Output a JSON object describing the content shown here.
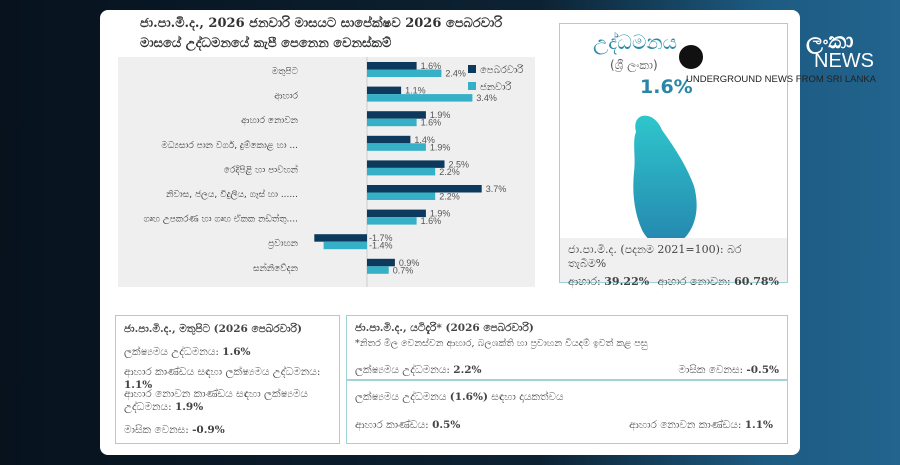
{
  "title": "ජා.පා.මි.ද., 2026 ජනවාරි මාසයට සාපේක්ෂව 2026 පෙබරවාරි මාසයේ උද්ධමනයේ කැපී පෙනෙන වෙනස්කම්",
  "colors": {
    "february": "#0d3a5c",
    "january": "#35b0c6",
    "accent": "#2a8aa8"
  },
  "chart_data": {
    "type": "bar",
    "orientation": "horizontal",
    "categories": [
      "මතුපිට",
      "ආහාර",
      "ආහාර නොවන",
      "මධ්‍යසාර පාන වර්ග, දුම්කොළ හා ...",
      "රෙදිපිළි හා පාවහන්",
      "නිවාස, ජලය, විදුලිය, ගෑස් හා ......",
      "ගෘහ උපකරණ හා ගෘහ ඒකක නඩත්තු....",
      "ප්‍රවාහන",
      "සන්නිවේදන"
    ],
    "series": [
      {
        "name": "පෙබරවාරි",
        "values": [
          1.6,
          1.1,
          1.9,
          1.4,
          2.5,
          3.7,
          1.9,
          -1.7,
          0.9
        ]
      },
      {
        "name": "ජනවාරි",
        "values": [
          2.4,
          3.4,
          1.6,
          1.9,
          2.2,
          2.2,
          1.6,
          -1.4,
          0.7
        ]
      }
    ],
    "unit": "%",
    "legend": "top-right",
    "grid": false
  },
  "panel": {
    "title": "උද්ධමනය",
    "subtitle": "(ශ්‍රී ලංකා)",
    "value": "1.6%",
    "weights_title": "ජා.පා.මි.ද. (පදනම 2021=100): බර තැබීම%",
    "food_label": "ආහාර:",
    "food_value": "39.22%",
    "nonfood_label": "ආහාර නොවන:",
    "nonfood_value": "60.78%"
  },
  "watermark": {
    "brand": "ලංකා",
    "news": "NEWS",
    "tagline": "UNDERGROUND NEWS FROM SRI LANKA"
  },
  "headline_box": {
    "title": "ජා.පා.මි.ද., මතුපිට (2026 පෙබරවාරි)",
    "rows": [
      {
        "label": "ලක්ෂ්‍යමය උද්ධමනය:",
        "value": "1.6%"
      },
      {
        "label": "ආහාර කාණ්ඩය සඳහා ලක්ෂ්‍යමය උද්ධමනය:",
        "value": "1.1%"
      },
      {
        "label": "ආහාර නොවන කාණ්ඩය සඳහා ලක්ෂ්‍යමය උද්ධමනය:",
        "value": "1.9%"
      },
      {
        "label": "මාසික වෙනස:",
        "value": "-0.9%"
      }
    ]
  },
  "core_box": {
    "title": "ජා.පා.මි.ද., යටිදැරි* (2026 පෙබරවාරි)",
    "note": "*නිතර මිල වෙනස්වන ආහාර, බලශක්ති හා ප්‍රවාහන වියදම් ඉවත් කළ පසු",
    "yoy_label": "ලක්ෂ්‍යමය උද්ධමනය:",
    "yoy_value": "2.2%",
    "mom_label": "මාසික වෙනස:",
    "mom_value": "-0.5%"
  },
  "contrib_box": {
    "title_a": "ලක්ෂ්‍යමය උද්ධමනය",
    "title_b": "(1.6%)",
    "title_c": "සඳහා දායකත්වය",
    "food_label": "ආහාර කාණ්ඩය:",
    "food_value": "0.5%",
    "nonfood_label": "ආහාර නොවන කාණ්ඩය:",
    "nonfood_value": "1.1%"
  }
}
